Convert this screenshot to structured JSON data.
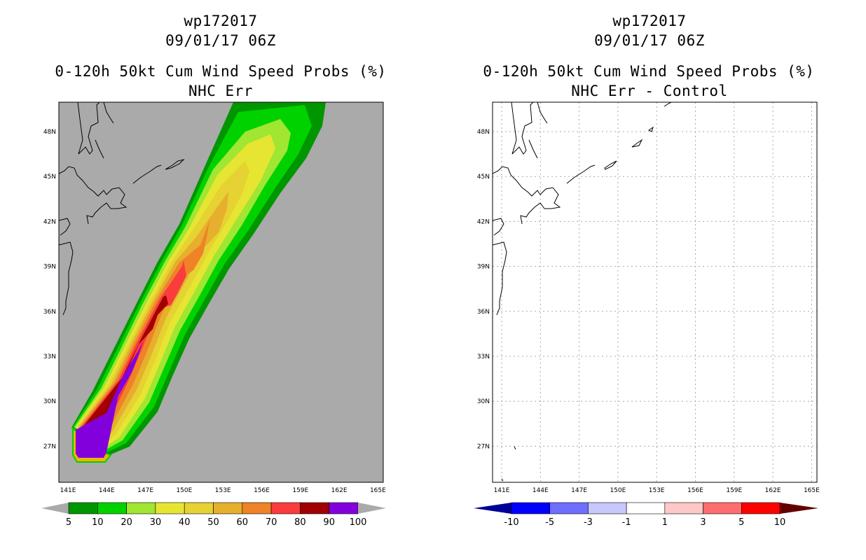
{
  "left_panel": {
    "storm_id": "wp172017",
    "datetime": "09/01/17 06Z",
    "product": "0-120h 50kt Cum Wind Speed Probs (%)",
    "subtitle": "NHC Err",
    "background_color": "#aaaaaa",
    "lat_labels": [
      "48N",
      "45N",
      "42N",
      "39N",
      "36N",
      "33N",
      "30N",
      "27N"
    ],
    "lon_labels": [
      "141E",
      "144E",
      "147E",
      "150E",
      "153E",
      "156E",
      "159E",
      "162E",
      "165E"
    ],
    "colorbar": {
      "left_arrow_color": "#aaaaaa",
      "right_arrow_color": "#aaaaaa",
      "colors": [
        "#009600",
        "#00d200",
        "#a0e632",
        "#e6e632",
        "#e6d232",
        "#e6af2d",
        "#f08228",
        "#fa3c3c",
        "#a00000",
        "#8200dc"
      ],
      "labels": [
        "5",
        "10",
        "20",
        "30",
        "40",
        "50",
        "60",
        "70",
        "80",
        "90",
        "100"
      ]
    }
  },
  "right_panel": {
    "storm_id": "wp172017",
    "datetime": "09/01/17 06Z",
    "product": "0-120h 50kt Cum Wind Speed Probs (%)",
    "subtitle": "NHC Err - Control",
    "lat_labels": [
      "48N",
      "45N",
      "42N",
      "39N",
      "36N",
      "33N",
      "30N",
      "27N"
    ],
    "lon_labels": [
      "141E",
      "144E",
      "147E",
      "150E",
      "153E",
      "156E",
      "159E",
      "162E",
      "165E"
    ],
    "colorbar": {
      "left_arrow_color": "#000096",
      "right_arrow_color": "#640000",
      "colors": [
        "#0000ff",
        "#6e6eff",
        "#c8c8ff",
        "#ffffff",
        "#ffc8c8",
        "#ff6e6e",
        "#ff0000"
      ],
      "labels": [
        "-10",
        "-5",
        "-3",
        "-1",
        "1",
        "3",
        "5",
        "10"
      ]
    }
  },
  "probability_contours": [
    {
      "level": 5,
      "color": "#009600"
    },
    {
      "level": 10,
      "color": "#00d200"
    },
    {
      "level": 20,
      "color": "#a0e632"
    },
    {
      "level": 30,
      "color": "#e6e632"
    },
    {
      "level": 40,
      "color": "#e6d232"
    },
    {
      "level": 50,
      "color": "#e6af2d"
    },
    {
      "level": 60,
      "color": "#f08228"
    },
    {
      "level": 70,
      "color": "#fa3c3c"
    },
    {
      "level": 80,
      "color": "#a00000"
    },
    {
      "level": 90,
      "color": "#8200dc"
    }
  ]
}
